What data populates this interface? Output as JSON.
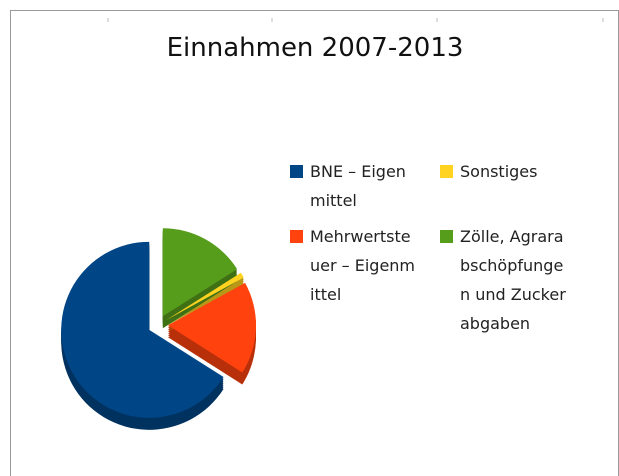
{
  "chart_data": {
    "type": "pie",
    "title": "Einnahmen 2007-2013",
    "categories": [
      "BNE – Eigenmittel",
      "Mehrwertsteuer – Eigenmittel",
      "Sonstiges",
      "Zölle, Agrarabschöpfungen und Zuckerabgaben"
    ],
    "values": [
      66,
      17,
      1,
      16
    ],
    "colors": [
      "#004586",
      "#ff420e",
      "#ffd320",
      "#579d1c"
    ],
    "legend": "right"
  }
}
